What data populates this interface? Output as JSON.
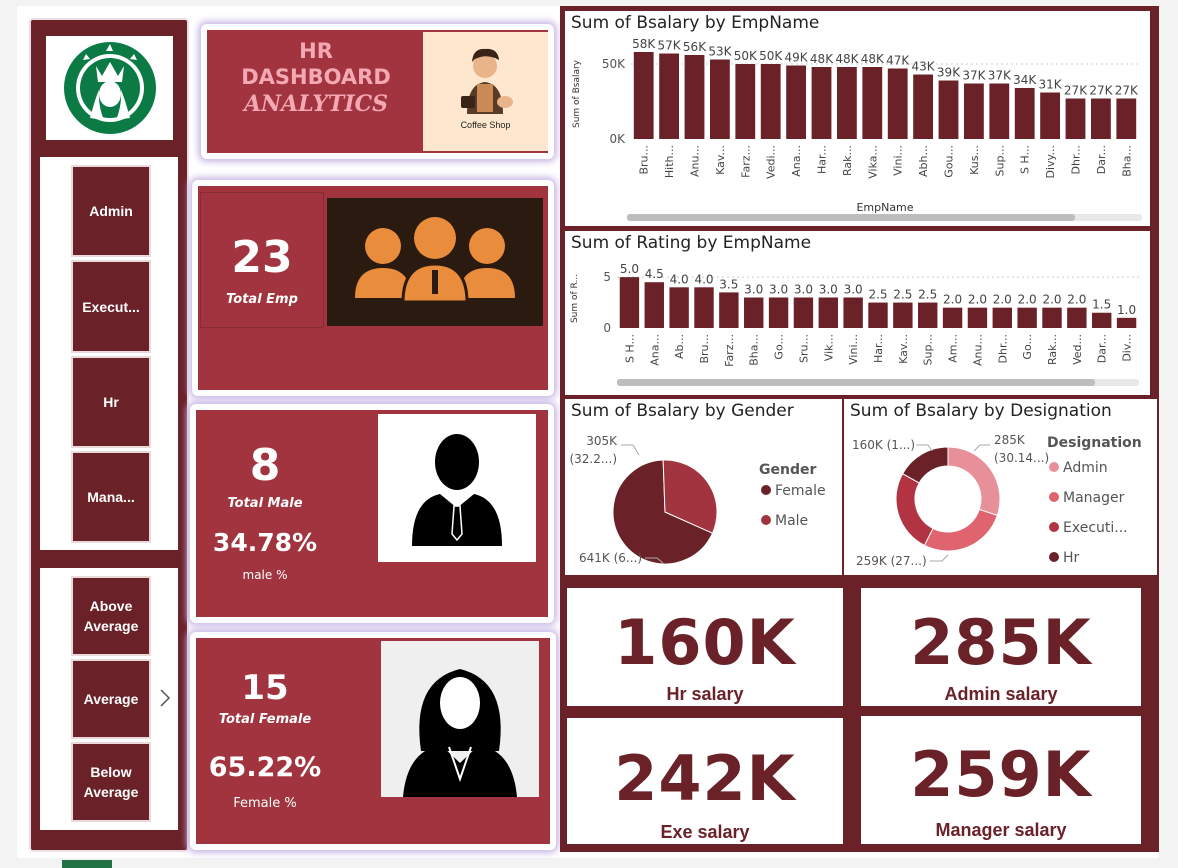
{
  "header": {
    "title_line1": "HR",
    "title_line2": "DASHBOARD",
    "title_line3": "ANALYTICS",
    "coffee_label": "Coffee Shop"
  },
  "nav": {
    "designation_buttons": [
      "Admin",
      "Execut...",
      "Hr",
      "Mana..."
    ],
    "rating_buttons": [
      "Above Average",
      "Average",
      "Below Average"
    ]
  },
  "kpis": {
    "total_emp": {
      "value": "23",
      "label": "Total Emp"
    },
    "total_male": {
      "value": "8",
      "label": "Total Male",
      "pct": "34.78%",
      "pct_label": "male %"
    },
    "total_female": {
      "value": "15",
      "label": "Total Female",
      "pct": "65.22%",
      "pct_label": "Female %"
    }
  },
  "cards": [
    {
      "value": "160K",
      "label": "Hr salary"
    },
    {
      "value": "285K",
      "label": "Admin salary"
    },
    {
      "value": "242K",
      "label": "Exe salary"
    },
    {
      "value": "259K",
      "label": "Manager salary"
    }
  ],
  "colors": {
    "maroon": "#6b2128",
    "red": "#a1343e",
    "bar": "#6b2128",
    "pink": "#e8909a",
    "rose": "#e06470",
    "crimson": "#b23443"
  },
  "chart_data": [
    {
      "type": "bar",
      "title": "Sum of Bsalary by EmpName",
      "xlabel": "EmpName",
      "ylabel": "Sum of Bsalary",
      "yticks": [
        "0K",
        "50K"
      ],
      "ylim": [
        0,
        60000
      ],
      "categories": [
        "Bru...",
        "Hith...",
        "Anu...",
        "Kav...",
        "Farz...",
        "Vedi...",
        "Ana...",
        "Har...",
        "Rak...",
        "Vika...",
        "Vini...",
        "Abh...",
        "Gou...",
        "Kus...",
        "Sup...",
        "S H...",
        "Divy...",
        "Dhr...",
        "Dar...",
        "Bha..."
      ],
      "values": [
        58000,
        57000,
        56000,
        53000,
        50000,
        50000,
        49000,
        48000,
        48000,
        48000,
        47000,
        43000,
        39000,
        37000,
        37000,
        34000,
        31000,
        27000,
        27000,
        27000
      ],
      "labels": [
        "58K",
        "57K",
        "56K",
        "53K",
        "50K",
        "50K",
        "49K",
        "48K",
        "48K",
        "48K",
        "47K",
        "43K",
        "39K",
        "37K",
        "37K",
        "34K",
        "31K",
        "27K",
        "27K",
        "27K"
      ]
    },
    {
      "type": "bar",
      "title": "Sum of Rating by EmpName",
      "ylabel": "Sum of R...",
      "yticks": [
        "0",
        "5"
      ],
      "ylim": [
        0,
        5.8
      ],
      "categories": [
        "S H...",
        "Ana...",
        "Ab...",
        "Bru...",
        "Farz...",
        "Bha...",
        "Go...",
        "Sru...",
        "Vik...",
        "Vini...",
        "Har...",
        "Kav...",
        "Sup...",
        "Am...",
        "Anu...",
        "Dhr...",
        "Go...",
        "Rak...",
        "Ved...",
        "Dar...",
        "Div..."
      ],
      "values": [
        5.0,
        4.5,
        4.0,
        4.0,
        3.5,
        3.0,
        3.0,
        3.0,
        3.0,
        3.0,
        2.5,
        2.5,
        2.5,
        2.0,
        2.0,
        2.0,
        2.0,
        2.0,
        2.0,
        1.5,
        1.0
      ],
      "labels": [
        "5.0",
        "4.5",
        "4.0",
        "4.0",
        "3.5",
        "3.0",
        "3.0",
        "3.0",
        "3.0",
        "3.0",
        "2.5",
        "2.5",
        "2.5",
        "2.0",
        "2.0",
        "2.0",
        "2.0",
        "2.0",
        "2.0",
        "1.5",
        "1.0"
      ]
    },
    {
      "type": "pie",
      "title": "Sum of Bsalary by Gender",
      "legend_title": "Gender",
      "series": [
        {
          "name": "Female",
          "value": 641000,
          "label": "641K (6...)",
          "color": "#6b2128"
        },
        {
          "name": "Male",
          "value": 305000,
          "label": "305K (32.2...)",
          "color": "#a1343e"
        }
      ]
    },
    {
      "type": "pie",
      "title": "Sum of Bsalary by Designation",
      "legend_title": "Designation",
      "series": [
        {
          "name": "Admin",
          "value": 285000,
          "label": "285K (30.14...)",
          "color": "#e8909a"
        },
        {
          "name": "Manager",
          "value": 259000,
          "label": "259K (27...)",
          "color": "#e06470"
        },
        {
          "name": "Executi...",
          "value": 242000,
          "label": "",
          "color": "#b23443"
        },
        {
          "name": "Hr",
          "value": 160000,
          "label": "160K (1...)",
          "color": "#6b2128"
        }
      ]
    }
  ]
}
